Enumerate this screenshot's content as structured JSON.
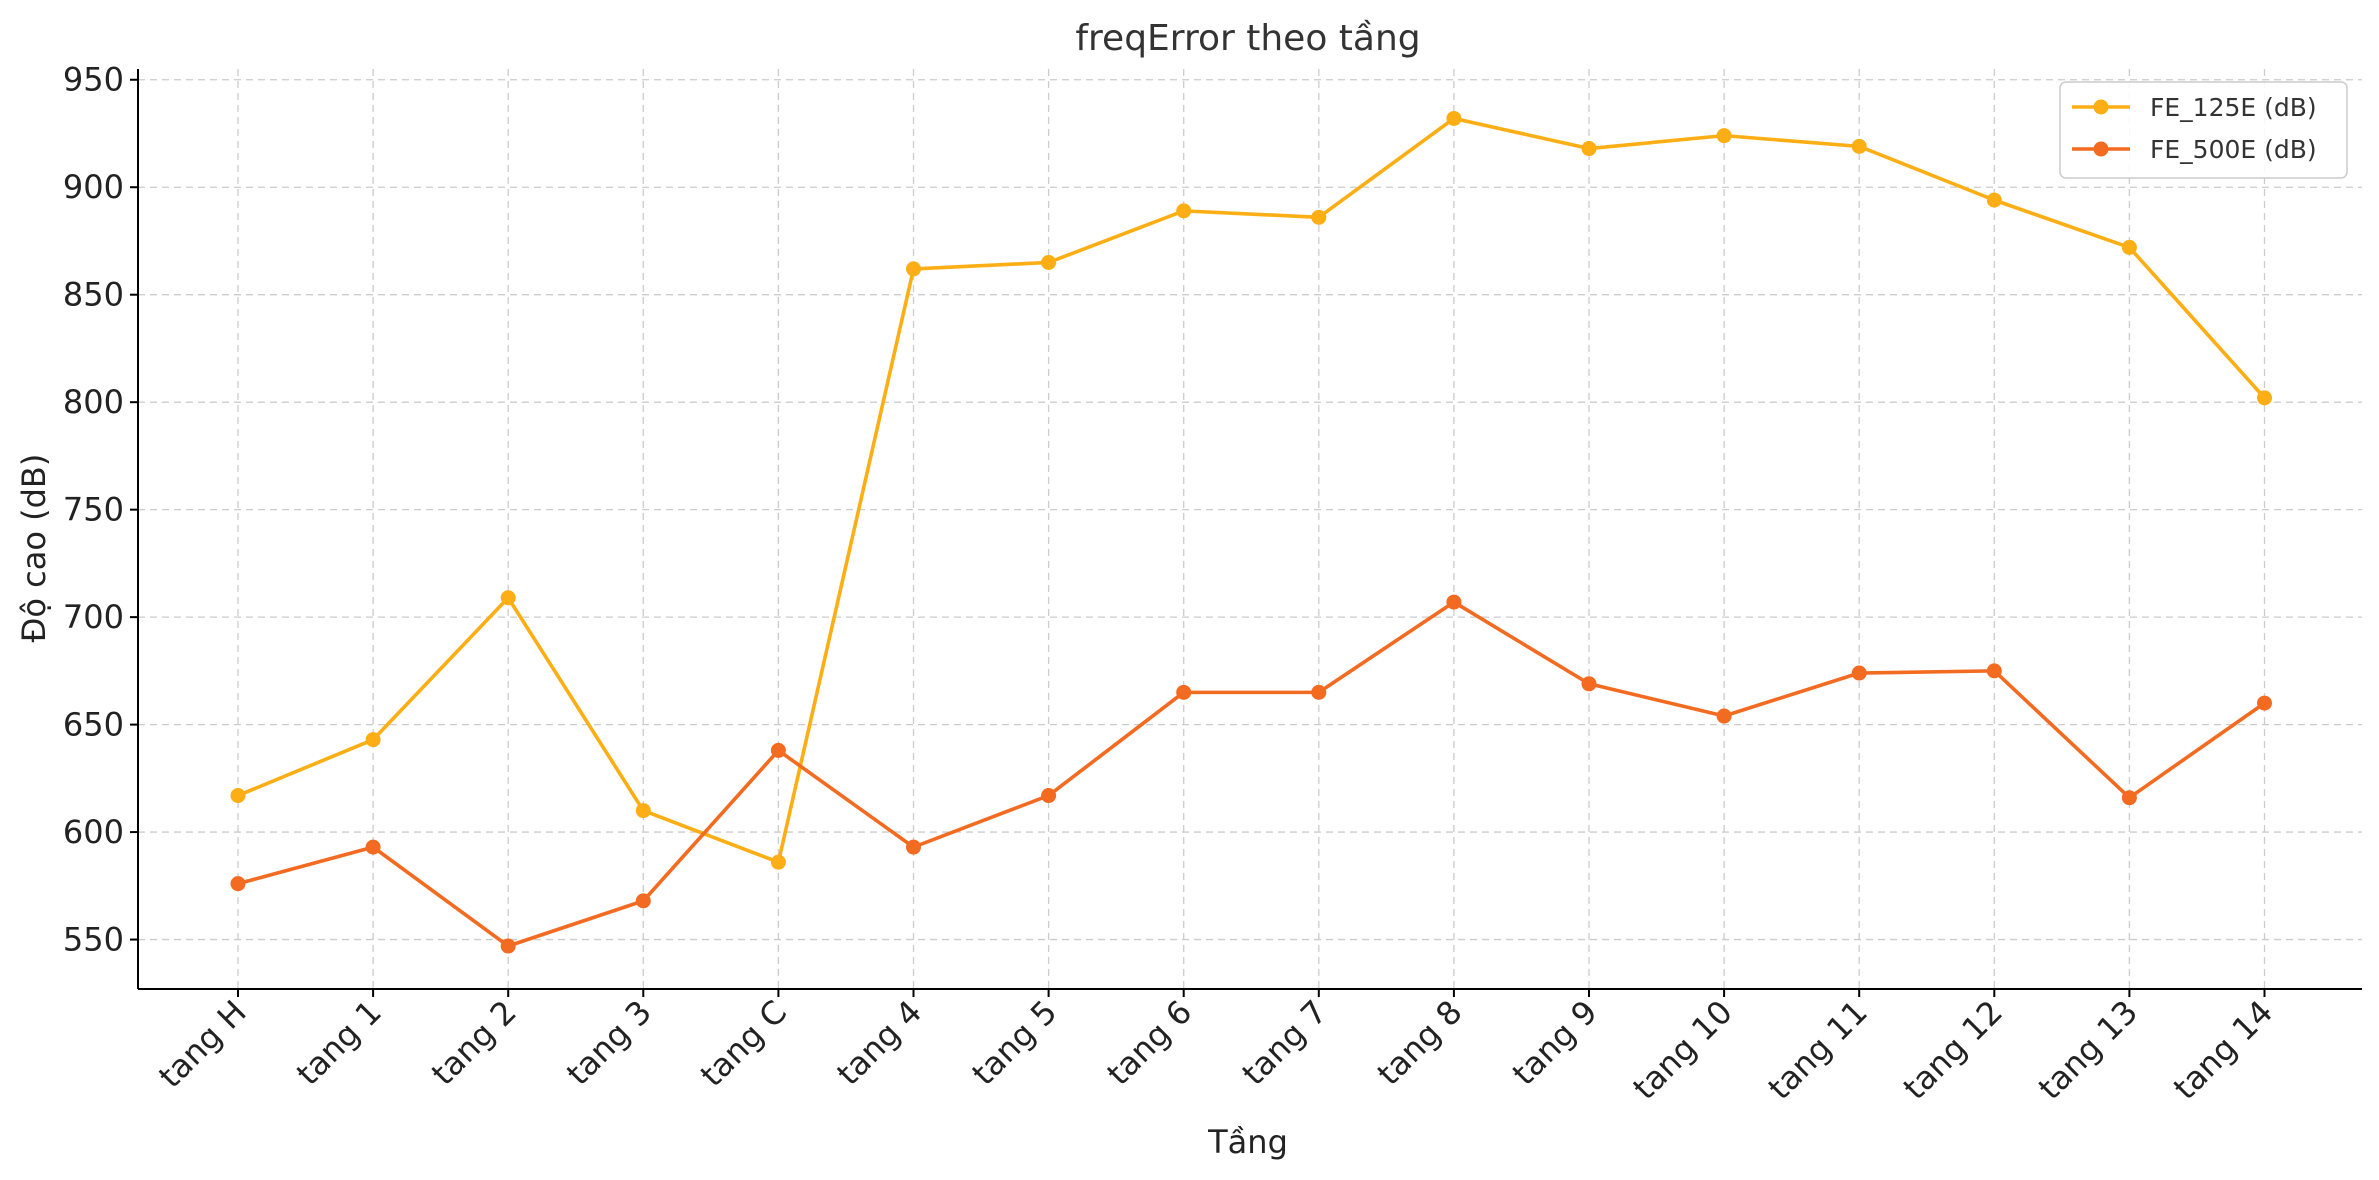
{
  "chart_data": {
    "type": "line",
    "title": "freqError theo tầng",
    "xlabel": "Tầng",
    "ylabel": "Độ cao (dB)",
    "categories": [
      "tang H",
      "tang 1",
      "tang 2",
      "tang 3",
      "tang C",
      "tang 4",
      "tang 5",
      "tang 6",
      "tang 7",
      "tang 8",
      "tang 9",
      "tang 10",
      "tang 11",
      "tang 12",
      "tang 13",
      "tang 14"
    ],
    "yticks": [
      550,
      600,
      650,
      700,
      750,
      800,
      850,
      900,
      950
    ],
    "ylim": [
      527,
      955
    ],
    "grid": true,
    "legend_position": "top-right",
    "series": [
      {
        "name": "FE_125E (dB)",
        "color": "#FDAE14",
        "values": [
          617,
          643,
          709,
          610,
          586,
          862,
          865,
          889,
          886,
          932,
          918,
          924,
          919,
          894,
          872,
          802
        ]
      },
      {
        "name": "FE_500E (dB)",
        "color": "#F26B21",
        "values": [
          576,
          593,
          547,
          568,
          638,
          593,
          617,
          665,
          665,
          707,
          669,
          654,
          674,
          675,
          616,
          660
        ]
      }
    ]
  }
}
